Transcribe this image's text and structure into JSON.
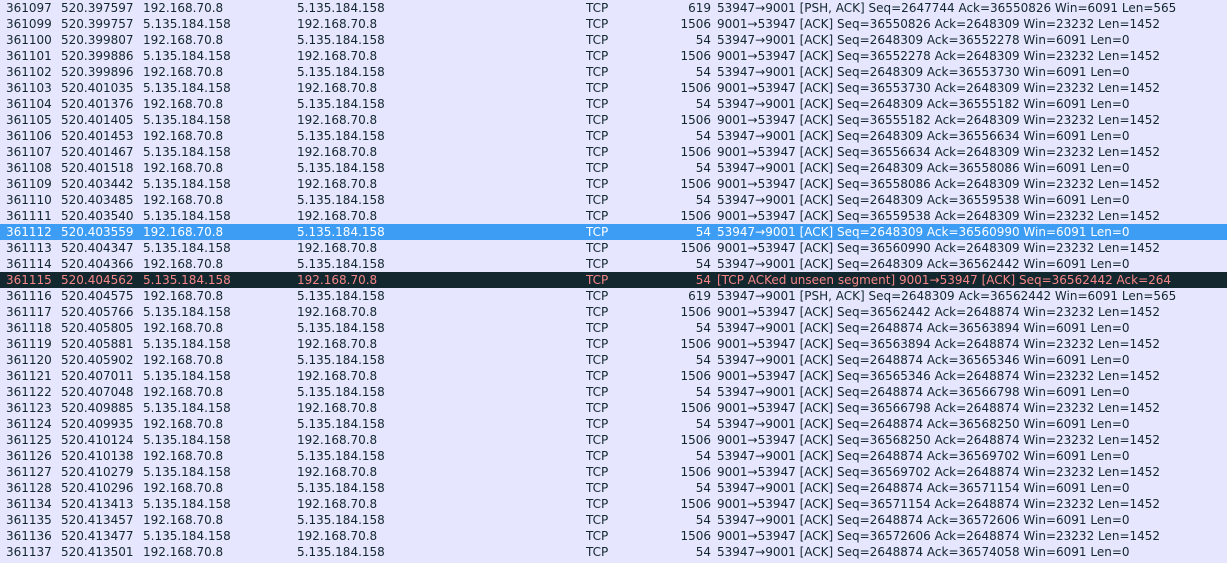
{
  "rows": [
    {
      "no": "361097",
      "time": "520.397597",
      "src": "192.168.70.8",
      "dst": "5.135.184.158",
      "proto": "TCP",
      "len": "619",
      "info": "53947→9001 [PSH, ACK] Seq=2647744 Ack=36550826 Win=6091 Len=565",
      "state": "normal"
    },
    {
      "no": "361099",
      "time": "520.399757",
      "src": "5.135.184.158",
      "dst": "192.168.70.8",
      "proto": "TCP",
      "len": "1506",
      "info": "9001→53947 [ACK] Seq=36550826 Ack=2648309 Win=23232 Len=1452",
      "state": "normal"
    },
    {
      "no": "361100",
      "time": "520.399807",
      "src": "192.168.70.8",
      "dst": "5.135.184.158",
      "proto": "TCP",
      "len": "54",
      "info": "53947→9001 [ACK] Seq=2648309 Ack=36552278 Win=6091 Len=0",
      "state": "normal"
    },
    {
      "no": "361101",
      "time": "520.399886",
      "src": "5.135.184.158",
      "dst": "192.168.70.8",
      "proto": "TCP",
      "len": "1506",
      "info": "9001→53947 [ACK] Seq=36552278 Ack=2648309 Win=23232 Len=1452",
      "state": "normal"
    },
    {
      "no": "361102",
      "time": "520.399896",
      "src": "192.168.70.8",
      "dst": "5.135.184.158",
      "proto": "TCP",
      "len": "54",
      "info": "53947→9001 [ACK] Seq=2648309 Ack=36553730 Win=6091 Len=0",
      "state": "normal"
    },
    {
      "no": "361103",
      "time": "520.401035",
      "src": "5.135.184.158",
      "dst": "192.168.70.8",
      "proto": "TCP",
      "len": "1506",
      "info": "9001→53947 [ACK] Seq=36553730 Ack=2648309 Win=23232 Len=1452",
      "state": "normal"
    },
    {
      "no": "361104",
      "time": "520.401376",
      "src": "192.168.70.8",
      "dst": "5.135.184.158",
      "proto": "TCP",
      "len": "54",
      "info": "53947→9001 [ACK] Seq=2648309 Ack=36555182 Win=6091 Len=0",
      "state": "normal"
    },
    {
      "no": "361105",
      "time": "520.401405",
      "src": "5.135.184.158",
      "dst": "192.168.70.8",
      "proto": "TCP",
      "len": "1506",
      "info": "9001→53947 [ACK] Seq=36555182 Ack=2648309 Win=23232 Len=1452",
      "state": "normal"
    },
    {
      "no": "361106",
      "time": "520.401453",
      "src": "192.168.70.8",
      "dst": "5.135.184.158",
      "proto": "TCP",
      "len": "54",
      "info": "53947→9001 [ACK] Seq=2648309 Ack=36556634 Win=6091 Len=0",
      "state": "normal"
    },
    {
      "no": "361107",
      "time": "520.401467",
      "src": "5.135.184.158",
      "dst": "192.168.70.8",
      "proto": "TCP",
      "len": "1506",
      "info": "9001→53947 [ACK] Seq=36556634 Ack=2648309 Win=23232 Len=1452",
      "state": "normal"
    },
    {
      "no": "361108",
      "time": "520.401518",
      "src": "192.168.70.8",
      "dst": "5.135.184.158",
      "proto": "TCP",
      "len": "54",
      "info": "53947→9001 [ACK] Seq=2648309 Ack=36558086 Win=6091 Len=0",
      "state": "normal"
    },
    {
      "no": "361109",
      "time": "520.403442",
      "src": "5.135.184.158",
      "dst": "192.168.70.8",
      "proto": "TCP",
      "len": "1506",
      "info": "9001→53947 [ACK] Seq=36558086 Ack=2648309 Win=23232 Len=1452",
      "state": "normal"
    },
    {
      "no": "361110",
      "time": "520.403485",
      "src": "192.168.70.8",
      "dst": "5.135.184.158",
      "proto": "TCP",
      "len": "54",
      "info": "53947→9001 [ACK] Seq=2648309 Ack=36559538 Win=6091 Len=0",
      "state": "normal"
    },
    {
      "no": "361111",
      "time": "520.403540",
      "src": "5.135.184.158",
      "dst": "192.168.70.8",
      "proto": "TCP",
      "len": "1506",
      "info": "9001→53947 [ACK] Seq=36559538 Ack=2648309 Win=23232 Len=1452",
      "state": "normal"
    },
    {
      "no": "361112",
      "time": "520.403559",
      "src": "192.168.70.8",
      "dst": "5.135.184.158",
      "proto": "TCP",
      "len": "54",
      "info": "53947→9001 [ACK] Seq=2648309 Ack=36560990 Win=6091 Len=0",
      "state": "selected"
    },
    {
      "no": "361113",
      "time": "520.404347",
      "src": "5.135.184.158",
      "dst": "192.168.70.8",
      "proto": "TCP",
      "len": "1506",
      "info": "9001→53947 [ACK] Seq=36560990 Ack=2648309 Win=23232 Len=1452",
      "state": "normal"
    },
    {
      "no": "361114",
      "time": "520.404366",
      "src": "192.168.70.8",
      "dst": "5.135.184.158",
      "proto": "TCP",
      "len": "54",
      "info": "53947→9001 [ACK] Seq=2648309 Ack=36562442 Win=6091 Len=0",
      "state": "normal"
    },
    {
      "no": "361115",
      "time": "520.404562",
      "src": "5.135.184.158",
      "dst": "192.168.70.8",
      "proto": "TCP",
      "len": "54",
      "info": "[TCP ACKed unseen segment] 9001→53947 [ACK] Seq=36562442 Ack=264",
      "state": "error"
    },
    {
      "no": "361116",
      "time": "520.404575",
      "src": "192.168.70.8",
      "dst": "5.135.184.158",
      "proto": "TCP",
      "len": "619",
      "info": "53947→9001 [PSH, ACK] Seq=2648309 Ack=36562442 Win=6091 Len=565",
      "state": "normal"
    },
    {
      "no": "361117",
      "time": "520.405766",
      "src": "5.135.184.158",
      "dst": "192.168.70.8",
      "proto": "TCP",
      "len": "1506",
      "info": "9001→53947 [ACK] Seq=36562442 Ack=2648874 Win=23232 Len=1452",
      "state": "normal"
    },
    {
      "no": "361118",
      "time": "520.405805",
      "src": "192.168.70.8",
      "dst": "5.135.184.158",
      "proto": "TCP",
      "len": "54",
      "info": "53947→9001 [ACK] Seq=2648874 Ack=36563894 Win=6091 Len=0",
      "state": "normal"
    },
    {
      "no": "361119",
      "time": "520.405881",
      "src": "5.135.184.158",
      "dst": "192.168.70.8",
      "proto": "TCP",
      "len": "1506",
      "info": "9001→53947 [ACK] Seq=36563894 Ack=2648874 Win=23232 Len=1452",
      "state": "normal"
    },
    {
      "no": "361120",
      "time": "520.405902",
      "src": "192.168.70.8",
      "dst": "5.135.184.158",
      "proto": "TCP",
      "len": "54",
      "info": "53947→9001 [ACK] Seq=2648874 Ack=36565346 Win=6091 Len=0",
      "state": "normal"
    },
    {
      "no": "361121",
      "time": "520.407011",
      "src": "5.135.184.158",
      "dst": "192.168.70.8",
      "proto": "TCP",
      "len": "1506",
      "info": "9001→53947 [ACK] Seq=36565346 Ack=2648874 Win=23232 Len=1452",
      "state": "normal"
    },
    {
      "no": "361122",
      "time": "520.407048",
      "src": "192.168.70.8",
      "dst": "5.135.184.158",
      "proto": "TCP",
      "len": "54",
      "info": "53947→9001 [ACK] Seq=2648874 Ack=36566798 Win=6091 Len=0",
      "state": "normal"
    },
    {
      "no": "361123",
      "time": "520.409885",
      "src": "5.135.184.158",
      "dst": "192.168.70.8",
      "proto": "TCP",
      "len": "1506",
      "info": "9001→53947 [ACK] Seq=36566798 Ack=2648874 Win=23232 Len=1452",
      "state": "normal"
    },
    {
      "no": "361124",
      "time": "520.409935",
      "src": "192.168.70.8",
      "dst": "5.135.184.158",
      "proto": "TCP",
      "len": "54",
      "info": "53947→9001 [ACK] Seq=2648874 Ack=36568250 Win=6091 Len=0",
      "state": "normal"
    },
    {
      "no": "361125",
      "time": "520.410124",
      "src": "5.135.184.158",
      "dst": "192.168.70.8",
      "proto": "TCP",
      "len": "1506",
      "info": "9001→53947 [ACK] Seq=36568250 Ack=2648874 Win=23232 Len=1452",
      "state": "normal"
    },
    {
      "no": "361126",
      "time": "520.410138",
      "src": "192.168.70.8",
      "dst": "5.135.184.158",
      "proto": "TCP",
      "len": "54",
      "info": "53947→9001 [ACK] Seq=2648874 Ack=36569702 Win=6091 Len=0",
      "state": "normal"
    },
    {
      "no": "361127",
      "time": "520.410279",
      "src": "5.135.184.158",
      "dst": "192.168.70.8",
      "proto": "TCP",
      "len": "1506",
      "info": "9001→53947 [ACK] Seq=36569702 Ack=2648874 Win=23232 Len=1452",
      "state": "normal"
    },
    {
      "no": "361128",
      "time": "520.410296",
      "src": "192.168.70.8",
      "dst": "5.135.184.158",
      "proto": "TCP",
      "len": "54",
      "info": "53947→9001 [ACK] Seq=2648874 Ack=36571154 Win=6091 Len=0",
      "state": "normal"
    },
    {
      "no": "361134",
      "time": "520.413413",
      "src": "5.135.184.158",
      "dst": "192.168.70.8",
      "proto": "TCP",
      "len": "1506",
      "info": "9001→53947 [ACK] Seq=36571154 Ack=2648874 Win=23232 Len=1452",
      "state": "normal"
    },
    {
      "no": "361135",
      "time": "520.413457",
      "src": "192.168.70.8",
      "dst": "5.135.184.158",
      "proto": "TCP",
      "len": "54",
      "info": "53947→9001 [ACK] Seq=2648874 Ack=36572606 Win=6091 Len=0",
      "state": "normal"
    },
    {
      "no": "361136",
      "time": "520.413477",
      "src": "5.135.184.158",
      "dst": "192.168.70.8",
      "proto": "TCP",
      "len": "1506",
      "info": "9001→53947 [ACK] Seq=36572606 Ack=2648874 Win=23232 Len=1452",
      "state": "normal"
    },
    {
      "no": "361137",
      "time": "520.413501",
      "src": "192.168.70.8",
      "dst": "5.135.184.158",
      "proto": "TCP",
      "len": "54",
      "info": "53947→9001 [ACK] Seq=2648874 Ack=36574058 Win=6091 Len=0",
      "state": "normal"
    }
  ],
  "colors": {
    "row_background": "#e7e6ff",
    "row_text": "#12272e",
    "selected_background": "#3d9df5",
    "selected_text": "#ffffff",
    "error_background": "#12272e",
    "error_text": "#f78787"
  }
}
